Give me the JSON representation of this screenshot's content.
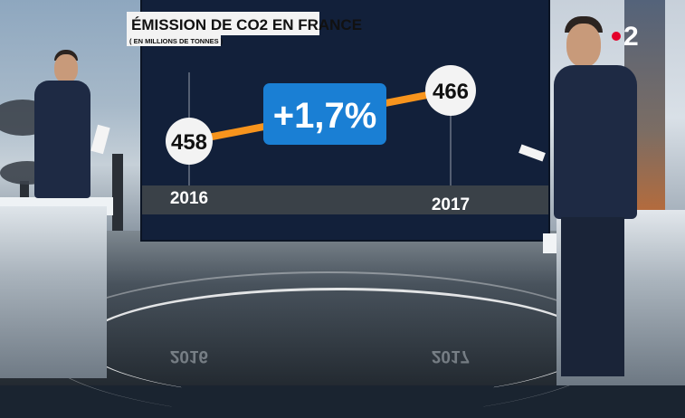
{
  "chart_data": {
    "type": "line",
    "title": "ÉMISSION DE CO2 EN FRANCE",
    "subtitle": "( EN MILLIONS DE TONNES )",
    "x": [
      "2016",
      "2017"
    ],
    "values": [
      458,
      466
    ],
    "value_labels": [
      "458",
      "466"
    ],
    "change_label": "+1,7%",
    "colors": {
      "line": "#f7941d",
      "badge": "#1a7fd4",
      "bubble": "#f3f3f3",
      "panel": "#12203a"
    }
  },
  "reflection": {
    "left_year": "2016",
    "right_year": "2017"
  },
  "channel_logo": {
    "text": "2",
    "colors": {
      "dot": "#e4002b",
      "digit": "#ffffff"
    }
  }
}
